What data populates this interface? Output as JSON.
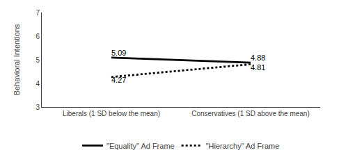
{
  "chart_data": {
    "type": "line",
    "categories": [
      "Liberals (1 SD below the mean)",
      "Conservatives (1 SD above the mean)"
    ],
    "series": [
      {
        "name": "\"Equality\" Ad Frame",
        "color": "#000000",
        "line_style": "solid",
        "values": [
          5.09,
          4.88
        ]
      },
      {
        "name": "\"Hierarchy\" Ad Frame",
        "color": "#000000",
        "line_style": "dotted",
        "values": [
          4.27,
          4.81
        ]
      }
    ],
    "ylabel": "Behavioral Intentions",
    "ylim": [
      3,
      7
    ],
    "yticks": [
      3,
      4,
      5,
      6,
      7
    ],
    "grid": false,
    "legend": "bottom",
    "data_labels": true
  }
}
